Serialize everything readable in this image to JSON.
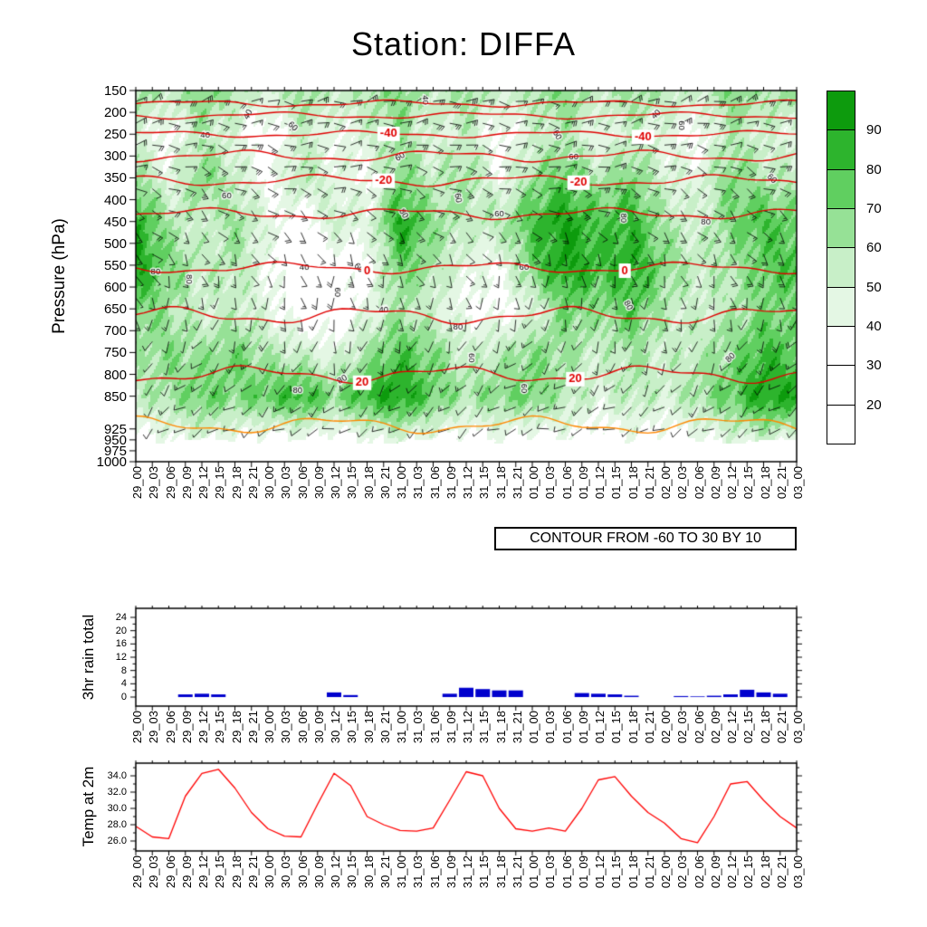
{
  "title": "Station: DIFFA",
  "contour_note": "CONTOUR FROM -60 TO 30 BY 10",
  "time_labels": [
    "29_00",
    "29_03",
    "29_06",
    "29_09",
    "29_12",
    "29_15",
    "29_18",
    "29_21",
    "30_00",
    "30_03",
    "30_06",
    "30_09",
    "30_12",
    "30_15",
    "30_18",
    "30_21",
    "31_00",
    "31_03",
    "31_06",
    "31_09",
    "31_12",
    "31_15",
    "31_18",
    "31_21",
    "01_00",
    "01_03",
    "01_06",
    "01_09",
    "01_12",
    "01_15",
    "01_18",
    "01_21",
    "02_00",
    "02_03",
    "02_06",
    "02_09",
    "02_12",
    "02_15",
    "02_18",
    "02_21",
    "03_00"
  ],
  "chart_data": [
    {
      "type": "heatmap",
      "name": "humidity-temperature-wind-cross-section",
      "ylabel": "Pressure (hPa)",
      "ylim": [
        150,
        1000
      ],
      "pressure_ticks": [
        150,
        200,
        250,
        300,
        350,
        400,
        450,
        500,
        550,
        600,
        650,
        700,
        750,
        800,
        850,
        925,
        950,
        975,
        1000
      ],
      "surface_cut_pressure": 952,
      "colorbar": {
        "thresholds": [
          20,
          30,
          40,
          50,
          60,
          70,
          80,
          90
        ],
        "labels_top_to_bottom": [
          "90",
          "80",
          "70",
          "60",
          "50",
          "40",
          "30",
          "20"
        ],
        "colors_low_to_high": [
          "#ffffff",
          "#ffffff",
          "#ffffff",
          "#e4f7e4",
          "#c8efc8",
          "#96e196",
          "#60cf60",
          "#2db42d",
          "#0d9b0d"
        ]
      },
      "humidity_grid": {
        "pressures": [
          150,
          250,
          350,
          450,
          550,
          650,
          750,
          850,
          950
        ],
        "time_index_step": 2,
        "values_percent": [
          [
            65,
            55,
            70,
            60,
            50,
            65,
            55,
            60,
            70,
            55,
            65,
            50,
            60,
            70,
            55,
            65,
            60,
            50,
            70,
            60,
            65
          ],
          [
            50,
            35,
            60,
            45,
            30,
            55,
            40,
            50,
            65,
            45,
            55,
            35,
            50,
            60,
            40,
            55,
            45,
            35,
            60,
            50,
            45
          ],
          [
            65,
            45,
            70,
            55,
            35,
            60,
            45,
            40,
            70,
            55,
            65,
            40,
            65,
            75,
            60,
            70,
            50,
            45,
            70,
            60,
            55
          ],
          [
            88,
            60,
            50,
            65,
            45,
            30,
            55,
            45,
            92,
            65,
            55,
            60,
            80,
            92,
            78,
            85,
            60,
            50,
            70,
            80,
            72
          ],
          [
            92,
            70,
            55,
            60,
            40,
            25,
            30,
            35,
            75,
            60,
            45,
            40,
            75,
            92,
            82,
            88,
            68,
            55,
            60,
            75,
            82
          ],
          [
            72,
            62,
            50,
            55,
            45,
            30,
            28,
            45,
            60,
            50,
            38,
            35,
            45,
            72,
            65,
            78,
            58,
            50,
            58,
            70,
            68
          ],
          [
            60,
            68,
            62,
            72,
            58,
            52,
            45,
            62,
            80,
            68,
            52,
            58,
            68,
            62,
            52,
            62,
            52,
            58,
            68,
            82,
            75
          ],
          [
            55,
            62,
            75,
            68,
            78,
            85,
            68,
            85,
            92,
            72,
            62,
            68,
            72,
            58,
            48,
            58,
            52,
            62,
            75,
            92,
            88
          ],
          [
            35,
            40,
            45,
            38,
            32,
            38,
            30,
            38,
            45,
            38,
            32,
            38,
            32,
            38,
            30,
            38,
            32,
            38,
            45,
            50,
            42
          ]
        ]
      },
      "humidity_labels": [
        {
          "v": 40,
          "t": 6.8,
          "p": 205,
          "rot": -60
        },
        {
          "v": 40,
          "t": 4.2,
          "p": 252,
          "rot": 0
        },
        {
          "v": 60,
          "t": 9.5,
          "p": 232,
          "rot": 45
        },
        {
          "v": 40,
          "t": 17.5,
          "p": 172,
          "rot": 90
        },
        {
          "v": 40,
          "t": 31.5,
          "p": 205,
          "rot": -45
        },
        {
          "v": 60,
          "t": 25.5,
          "p": 252,
          "rot": 60
        },
        {
          "v": 60,
          "t": 33.0,
          "p": 230,
          "rot": 90
        },
        {
          "v": 60,
          "t": 5.5,
          "p": 392,
          "rot": 0
        },
        {
          "v": 60,
          "t": 16.0,
          "p": 302,
          "rot": -30
        },
        {
          "v": 80,
          "t": 16.2,
          "p": 432,
          "rot": 60
        },
        {
          "v": 60,
          "t": 19.5,
          "p": 396,
          "rot": 80
        },
        {
          "v": 60,
          "t": 22.0,
          "p": 432,
          "rot": 0
        },
        {
          "v": 80,
          "t": 29.5,
          "p": 442,
          "rot": 90
        },
        {
          "v": 60,
          "t": 26.5,
          "p": 302,
          "rot": 0
        },
        {
          "v": 80,
          "t": 1.2,
          "p": 566,
          "rot": 0
        },
        {
          "v": 40,
          "t": 10.2,
          "p": 556,
          "rot": 0
        },
        {
          "v": 60,
          "t": 13.5,
          "p": 556,
          "rot": 45
        },
        {
          "v": 60,
          "t": 23.5,
          "p": 556,
          "rot": 0
        },
        {
          "v": 60,
          "t": 12.2,
          "p": 612,
          "rot": 90
        },
        {
          "v": 40,
          "t": 15.0,
          "p": 652,
          "rot": 0
        },
        {
          "v": 80,
          "t": 19.5,
          "p": 692,
          "rot": 0
        },
        {
          "v": 80,
          "t": 29.8,
          "p": 642,
          "rot": 60
        },
        {
          "v": 60,
          "t": 20.3,
          "p": 762,
          "rot": 90
        },
        {
          "v": 80,
          "t": 12.5,
          "p": 812,
          "rot": -30
        },
        {
          "v": 80,
          "t": 9.8,
          "p": 836,
          "rot": 0
        },
        {
          "v": 60,
          "t": 23.5,
          "p": 832,
          "rot": 90
        },
        {
          "v": 80,
          "t": 36.0,
          "p": 762,
          "rot": -45
        },
        {
          "v": 80,
          "t": 3.2,
          "p": 582,
          "rot": 90
        },
        {
          "v": 80,
          "t": 34.5,
          "p": 452,
          "rot": 0
        },
        {
          "v": 60,
          "t": 38.5,
          "p": 352,
          "rot": 45
        }
      ],
      "temperature_contours": {
        "color": "#e00000",
        "warm_color": "#ff8800",
        "levels": [
          {
            "value": -60,
            "pressure": 180,
            "labels": []
          },
          {
            "value": -50,
            "pressure": 207,
            "labels": []
          },
          {
            "value": -40,
            "pressure": 250,
            "labels": [
              15.3,
              30.7
            ]
          },
          {
            "value": -30,
            "pressure": 300,
            "labels": []
          },
          {
            "value": -20,
            "pressure": 356,
            "labels": [
              15.0,
              26.8
            ]
          },
          {
            "value": -10,
            "pressure": 432,
            "labels": []
          },
          {
            "value": 0,
            "pressure": 556,
            "labels": [
              14.0,
              29.6
            ]
          },
          {
            "value": 10,
            "pressure": 665,
            "labels": []
          },
          {
            "value": 20,
            "pressure": 800,
            "labels": [
              13.7,
              26.6
            ]
          },
          {
            "value": 30,
            "pressure": 916,
            "labels": []
          }
        ]
      },
      "wind_grid": {
        "pressures": [
          150,
          350,
          550,
          750,
          950
        ],
        "time_index_step": 4,
        "dir_deg": [
          [
            60,
            75,
            90,
            80,
            70,
            85,
            95,
            80,
            70,
            60,
            75
          ],
          [
            100,
            120,
            110,
            95,
            105,
            115,
            100,
            90,
            110,
            120,
            105
          ],
          [
            140,
            160,
            150,
            170,
            155,
            145,
            165,
            175,
            160,
            150,
            155
          ],
          [
            200,
            220,
            210,
            190,
            205,
            215,
            225,
            200,
            195,
            210,
            220
          ],
          [
            230,
            250,
            240,
            260,
            245,
            235,
            255,
            265,
            250,
            240,
            245
          ]
        ],
        "spd_kt": [
          [
            20,
            25,
            15,
            20,
            30,
            25,
            20,
            15,
            25,
            20,
            25
          ],
          [
            15,
            20,
            25,
            15,
            10,
            20,
            15,
            25,
            20,
            15,
            20
          ],
          [
            10,
            15,
            10,
            20,
            15,
            10,
            15,
            10,
            15,
            20,
            15
          ],
          [
            10,
            10,
            15,
            10,
            15,
            10,
            10,
            15,
            10,
            10,
            15
          ],
          [
            5,
            10,
            5,
            10,
            5,
            10,
            5,
            10,
            5,
            10,
            5
          ]
        ]
      }
    },
    {
      "type": "bar",
      "name": "rain",
      "ylabel": "3hr rain total",
      "yticks": [
        0,
        4,
        8,
        12,
        16,
        20,
        24
      ],
      "ylim": [
        0,
        26.7
      ],
      "bar_color": "#0000cd",
      "values": [
        0,
        0,
        0,
        0.8,
        1.0,
        0.8,
        0,
        0,
        0,
        0,
        0,
        0,
        1.4,
        0.6,
        0,
        0,
        0,
        0,
        0,
        1.0,
        2.8,
        2.4,
        2.0,
        2.0,
        0,
        0,
        0,
        1.2,
        1.0,
        0.8,
        0.4,
        0,
        0,
        0.3,
        0.2,
        0.4,
        0.8,
        2.2,
        1.4,
        1.0,
        0
      ]
    },
    {
      "type": "line",
      "name": "temp2m",
      "ylabel": "Temp at 2m",
      "ytick_labels": [
        "34.0",
        "32.0",
        "30.0",
        "28.0",
        "26.0"
      ],
      "ytick_values": [
        34,
        32,
        30,
        28,
        26
      ],
      "ylim": [
        24.8,
        35.6
      ],
      "line_color": "#ff0000",
      "values": [
        27.8,
        26.5,
        26.3,
        31.5,
        34.3,
        34.8,
        32.5,
        29.5,
        27.5,
        26.6,
        26.5,
        30.5,
        34.3,
        32.8,
        29.0,
        28.0,
        27.3,
        27.2,
        27.6,
        31.0,
        34.5,
        34.0,
        30.0,
        27.5,
        27.2,
        27.6,
        27.2,
        30.0,
        33.5,
        33.9,
        31.5,
        29.5,
        28.2,
        26.3,
        25.8,
        29.0,
        33.0,
        33.3,
        31.0,
        29.0,
        27.6
      ]
    }
  ]
}
